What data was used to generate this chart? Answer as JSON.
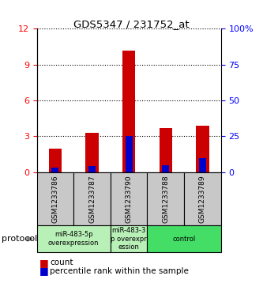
{
  "title": "GDS5347 / 231752_at",
  "samples": [
    "GSM1233786",
    "GSM1233787",
    "GSM1233790",
    "GSM1233788",
    "GSM1233789"
  ],
  "count_values": [
    2.0,
    3.3,
    10.2,
    3.7,
    3.9
  ],
  "percentile_values": [
    3.0,
    4.5,
    25.0,
    5.0,
    10.0
  ],
  "left_ylim": [
    0,
    12
  ],
  "right_ylim": [
    0,
    100
  ],
  "left_yticks": [
    0,
    3,
    6,
    9,
    12
  ],
  "right_yticks": [
    0,
    25,
    50,
    75,
    100
  ],
  "right_yticklabels": [
    "0",
    "25",
    "50",
    "75",
    "100%"
  ],
  "bar_color": "#cc0000",
  "percentile_color": "#0000cc",
  "protocol_label": "protocol",
  "legend_count_label": "count",
  "legend_percentile_label": "percentile rank within the sample",
  "sample_bg_color": "#c8c8c8",
  "green_light": "#b8f0b8",
  "green_dark": "#44dd66",
  "bar_width": 0.35
}
